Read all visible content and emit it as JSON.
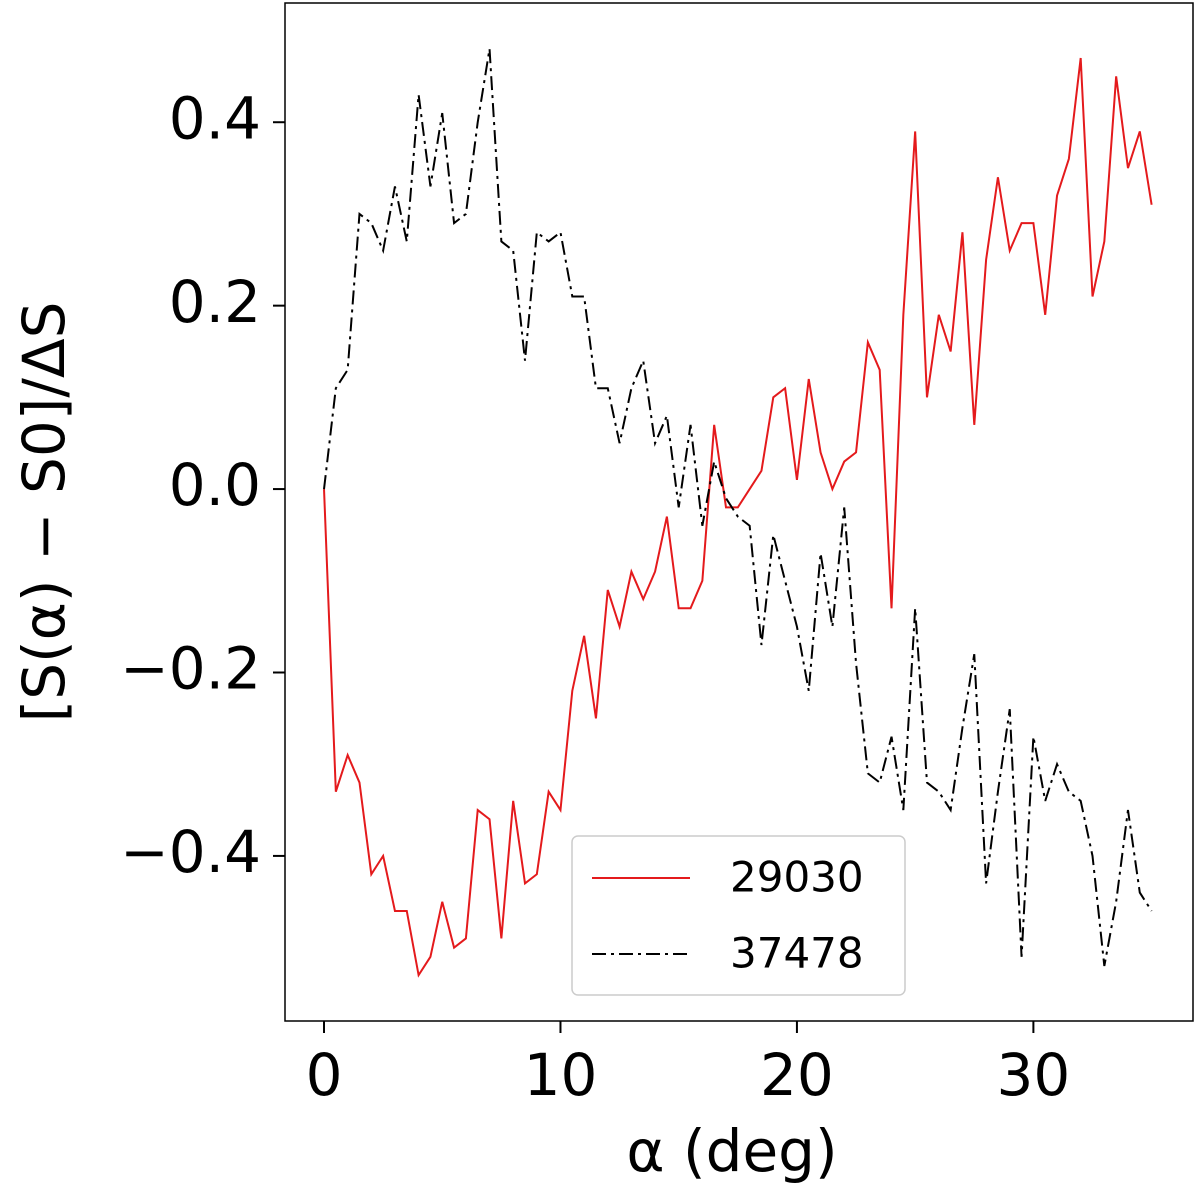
{
  "chart_data": {
    "type": "line",
    "x_label": "α (deg)",
    "y_label": "[S(α) − S0]/ΔS",
    "x": [
      0,
      0.5,
      1,
      1.5,
      2,
      2.5,
      3,
      3.5,
      4,
      4.5,
      5,
      5.5,
      6,
      6.5,
      7,
      7.5,
      8,
      8.5,
      9,
      9.5,
      10,
      10.5,
      11,
      11.5,
      12,
      12.5,
      13,
      13.5,
      14,
      14.5,
      15,
      15.5,
      16,
      16.5,
      17,
      17.5,
      18,
      18.5,
      19,
      19.5,
      20,
      20.5,
      21,
      21.5,
      22,
      22.5,
      23,
      23.5,
      24,
      24.5,
      25,
      25.5,
      26,
      26.5,
      27,
      27.5,
      28,
      28.5,
      29,
      29.5,
      30,
      30.5,
      31,
      31.5,
      32,
      32.5,
      33,
      33.5,
      34,
      34.5,
      35
    ],
    "series": [
      {
        "name": "29030",
        "color": "#e41a1c",
        "linestyle": "solid",
        "values": [
          0,
          -0.33,
          -0.29,
          -0.32,
          -0.42,
          -0.4,
          -0.46,
          -0.46,
          -0.53,
          -0.51,
          -0.45,
          -0.5,
          -0.49,
          -0.35,
          -0.36,
          -0.49,
          -0.34,
          -0.43,
          -0.42,
          -0.33,
          -0.35,
          -0.22,
          -0.16,
          -0.25,
          -0.11,
          -0.15,
          -0.09,
          -0.12,
          -0.09,
          -0.03,
          -0.13,
          -0.13,
          -0.1,
          0.07,
          -0.02,
          -0.02,
          0.0,
          0.02,
          0.1,
          0.11,
          0.01,
          0.12,
          0.04,
          0.0,
          0.03,
          0.04,
          0.16,
          0.13,
          -0.13,
          0.19,
          0.39,
          0.1,
          0.19,
          0.15,
          0.28,
          0.07,
          0.25,
          0.34,
          0.26,
          0.29,
          0.29,
          0.19,
          0.32,
          0.36,
          0.47,
          0.21,
          0.27,
          0.45,
          0.35,
          0.39,
          0.31
        ]
      },
      {
        "name": "37478",
        "color": "#000000",
        "linestyle": "dashdot",
        "values": [
          0,
          0.11,
          0.13,
          0.3,
          0.29,
          0.26,
          0.33,
          0.27,
          0.43,
          0.33,
          0.41,
          0.29,
          0.3,
          0.4,
          0.48,
          0.27,
          0.26,
          0.14,
          0.28,
          0.27,
          0.28,
          0.21,
          0.21,
          0.11,
          0.11,
          0.05,
          0.11,
          0.14,
          0.05,
          0.08,
          -0.02,
          0.07,
          -0.04,
          0.03,
          -0.01,
          -0.03,
          -0.04,
          -0.17,
          -0.05,
          -0.1,
          -0.15,
          -0.22,
          -0.07,
          -0.15,
          -0.02,
          -0.19,
          -0.31,
          -0.32,
          -0.27,
          -0.35,
          -0.13,
          -0.32,
          -0.33,
          -0.35,
          -0.26,
          -0.18,
          -0.43,
          -0.33,
          -0.24,
          -0.51,
          -0.27,
          -0.34,
          -0.3,
          -0.33,
          -0.34,
          -0.4,
          -0.52,
          -0.45,
          -0.35,
          -0.44,
          -0.46
        ]
      }
    ],
    "xlim": [
      -1.65,
      36.75
    ],
    "xticks": [
      0,
      10,
      20,
      30
    ],
    "ylim": [
      -0.58,
      0.53
    ],
    "yticks": [
      {
        "value": -0.4,
        "label": "−0.4"
      },
      {
        "value": -0.2,
        "label": "−0.2"
      },
      {
        "value": 0,
        "label": "0.0"
      },
      0.2,
      0.4
    ],
    "grid": false,
    "legend": "lower center"
  }
}
